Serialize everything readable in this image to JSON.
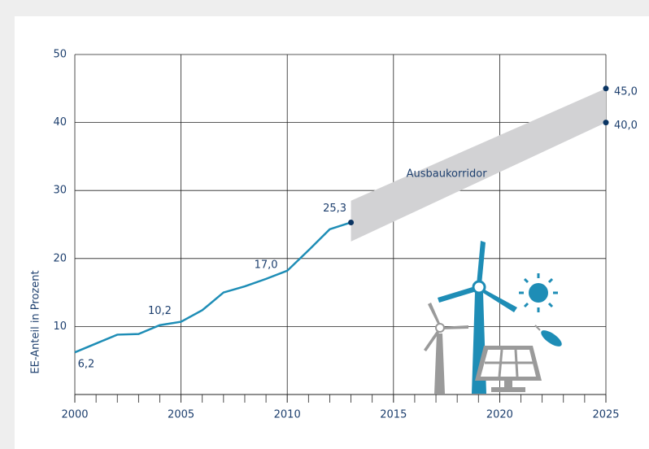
{
  "chart_data": {
    "type": "line",
    "y_label": "EE-Anteil in Prozent",
    "x": [
      2000,
      2001,
      2002,
      2003,
      2004,
      2005,
      2006,
      2007,
      2008,
      2009,
      2010,
      2011,
      2012,
      2013
    ],
    "values": [
      6.2,
      7.5,
      8.8,
      8.9,
      10.2,
      10.7,
      12.4,
      15.0,
      15.9,
      17.0,
      18.2,
      21.2,
      24.3,
      25.3
    ],
    "value_labels": [
      "6,2",
      null,
      null,
      null,
      "10,2",
      null,
      null,
      null,
      null,
      "17,0",
      null,
      null,
      null,
      "25,3"
    ],
    "color": "#1e8db6",
    "corridor": {
      "label": "Ausbaukorridor",
      "color": "#d2d2d4",
      "x": [
        2013,
        2025
      ],
      "lower": [
        22.5,
        40.0
      ],
      "upper": [
        28.5,
        45.0
      ],
      "end_labels": {
        "lower": "40,0",
        "upper": "45,0"
      }
    },
    "xlim": [
      2000,
      2025
    ],
    "xticks": [
      2000,
      2005,
      2010,
      2015,
      2020,
      2025
    ],
    "ylim": [
      0,
      50
    ],
    "yticks": [
      10,
      20,
      30,
      40,
      50
    ],
    "grid": true
  }
}
